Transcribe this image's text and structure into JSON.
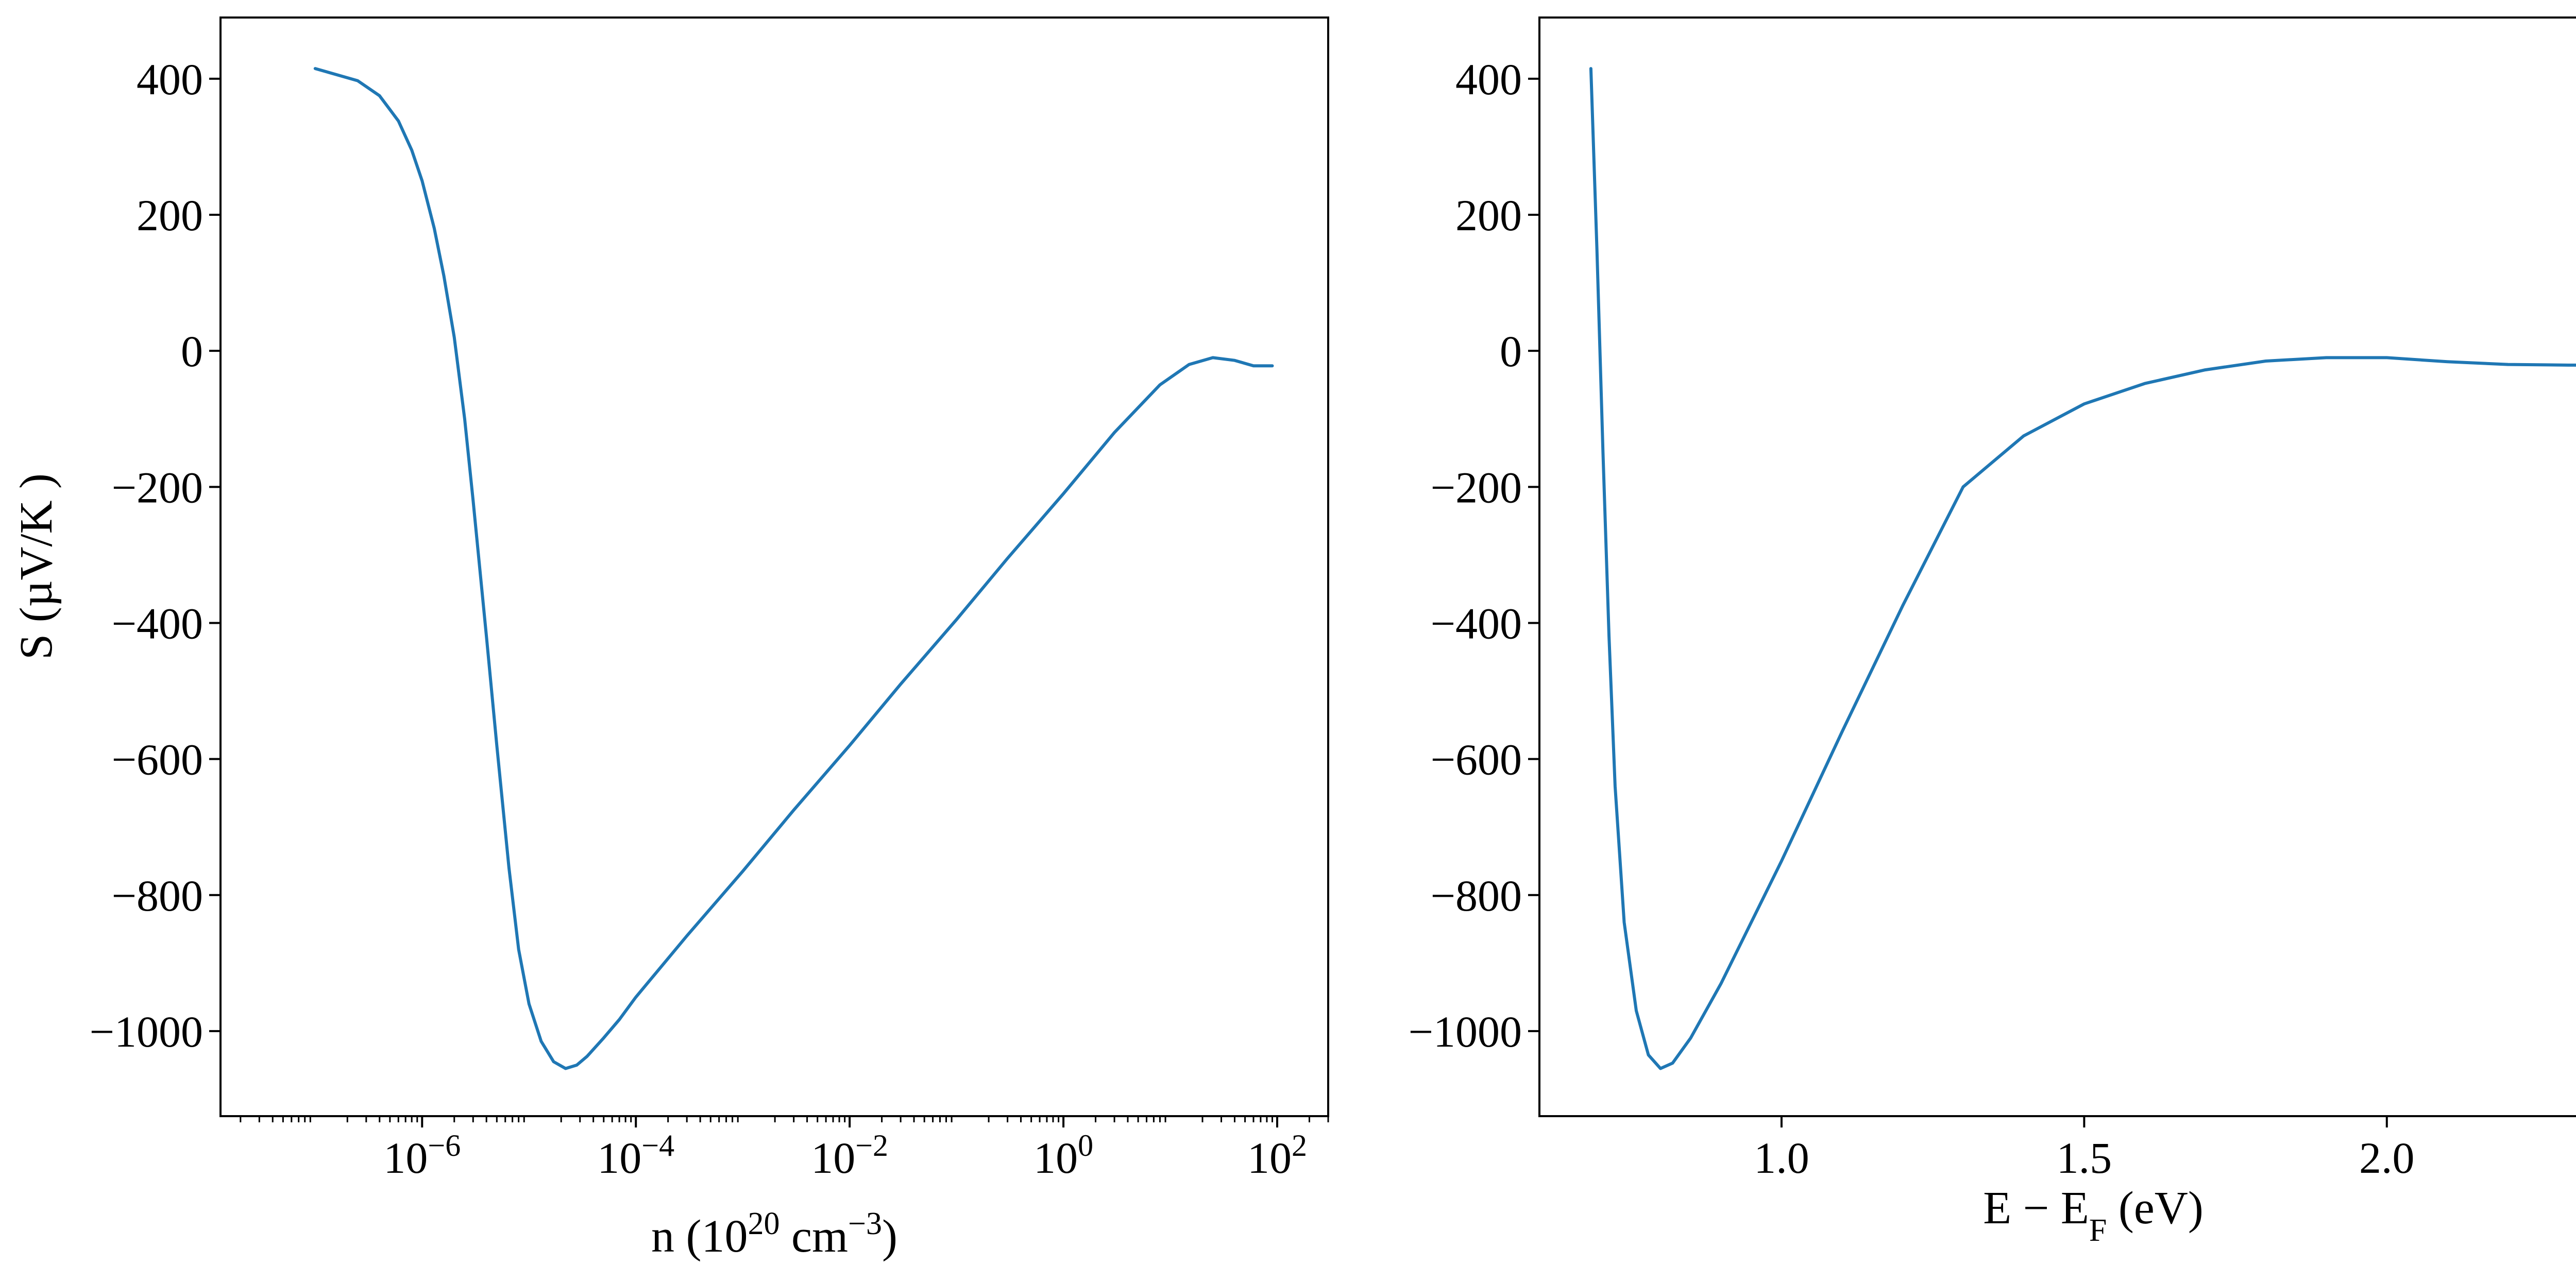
{
  "figure": {
    "ylabel": "S (µV/K )"
  },
  "chart_data": [
    {
      "type": "line",
      "xscale": "log",
      "xlabel": "n (10^20 cm^-3)",
      "xlabel_parts": {
        "pre": "n (10",
        "sup1": "20",
        "mid": " cm",
        "sup2": "−3",
        "post": ")"
      },
      "ylabel": "S (µV/K )",
      "xlim": [
        1.3e-08,
        300
      ],
      "ylim": [
        -1125,
        490
      ],
      "xticks": [
        {
          "value": 1e-06,
          "base": "10",
          "exp": "−6"
        },
        {
          "value": 0.0001,
          "base": "10",
          "exp": "−4"
        },
        {
          "value": 0.01,
          "base": "10",
          "exp": "−2"
        },
        {
          "value": 1,
          "base": "10",
          "exp": "0"
        },
        {
          "value": 100,
          "base": "10",
          "exp": "2"
        }
      ],
      "yticks": [
        {
          "value": 400,
          "label": "400"
        },
        {
          "value": 200,
          "label": "200"
        },
        {
          "value": 0,
          "label": "0"
        },
        {
          "value": -200,
          "label": "−200"
        },
        {
          "value": -400,
          "label": "−400"
        },
        {
          "value": -600,
          "label": "−600"
        },
        {
          "value": -800,
          "label": "−800"
        },
        {
          "value": -1000,
          "label": "−1000"
        }
      ],
      "series": [
        {
          "color": "#1f77b4",
          "points": [
            [
              1e-07,
              415
            ],
            [
              2.5e-07,
              397
            ],
            [
              4e-07,
              375
            ],
            [
              6e-07,
              338
            ],
            [
              8e-07,
              295
            ],
            [
              1e-06,
              250
            ],
            [
              1.3e-06,
              180
            ],
            [
              1.6e-06,
              110
            ],
            [
              2e-06,
              20
            ],
            [
              2.5e-06,
              -100
            ],
            [
              3e-06,
              -220
            ],
            [
              4e-06,
              -420
            ],
            [
              5e-06,
              -580
            ],
            [
              6.5e-06,
              -760
            ],
            [
              8e-06,
              -880
            ],
            [
              1e-05,
              -960
            ],
            [
              1.3e-05,
              -1015
            ],
            [
              1.7e-05,
              -1045
            ],
            [
              2.2e-05,
              -1055
            ],
            [
              2.8e-05,
              -1050
            ],
            [
              3.5e-05,
              -1037
            ],
            [
              5e-05,
              -1010
            ],
            [
              7e-05,
              -983
            ],
            [
              0.0001,
              -950
            ],
            [
              0.0003,
              -860
            ],
            [
              0.001,
              -765
            ],
            [
              0.003,
              -675
            ],
            [
              0.01,
              -580
            ],
            [
              0.03,
              -490
            ],
            [
              0.1,
              -395
            ],
            [
              0.3,
              -305
            ],
            [
              1.0,
              -210
            ],
            [
              3.0,
              -120
            ],
            [
              8.0,
              -50
            ],
            [
              15.0,
              -20
            ],
            [
              25.0,
              -10
            ],
            [
              40.0,
              -14
            ],
            [
              60.0,
              -22
            ],
            [
              90.0,
              -22
            ]
          ]
        }
      ]
    },
    {
      "type": "line",
      "xscale": "linear",
      "xlabel": "E − E_F (eV)",
      "xlabel_parts": {
        "pre": "E − E",
        "sub": "F",
        "post": " (eV)"
      },
      "xlim": [
        0.6,
        2.43
      ],
      "ylim": [
        -1125,
        490
      ],
      "xticks": [
        {
          "value": 1.0,
          "label": "1.0"
        },
        {
          "value": 1.5,
          "label": "1.5"
        },
        {
          "value": 2.0,
          "label": "2.0"
        }
      ],
      "yticks": [
        {
          "value": 400,
          "label": "400"
        },
        {
          "value": 200,
          "label": "200"
        },
        {
          "value": 0,
          "label": "0"
        },
        {
          "value": -200,
          "label": "−200"
        },
        {
          "value": -400,
          "label": "−400"
        },
        {
          "value": -600,
          "label": "−600"
        },
        {
          "value": -800,
          "label": "−800"
        },
        {
          "value": -1000,
          "label": "−1000"
        }
      ],
      "series": [
        {
          "color": "#1f77b4",
          "points": [
            [
              0.685,
              415
            ],
            [
              0.695,
              150
            ],
            [
              0.705,
              -150
            ],
            [
              0.715,
              -420
            ],
            [
              0.725,
              -640
            ],
            [
              0.74,
              -840
            ],
            [
              0.76,
              -970
            ],
            [
              0.78,
              -1035
            ],
            [
              0.8,
              -1055
            ],
            [
              0.82,
              -1047
            ],
            [
              0.85,
              -1010
            ],
            [
              0.9,
              -930
            ],
            [
              0.95,
              -840
            ],
            [
              1.0,
              -750
            ],
            [
              1.05,
              -655
            ],
            [
              1.1,
              -560
            ],
            [
              1.2,
              -375
            ],
            [
              1.3,
              -200
            ],
            [
              1.4,
              -125
            ],
            [
              1.5,
              -78
            ],
            [
              1.6,
              -48
            ],
            [
              1.7,
              -28
            ],
            [
              1.8,
              -15
            ],
            [
              1.9,
              -10
            ],
            [
              2.0,
              -10
            ],
            [
              2.1,
              -16
            ],
            [
              2.2,
              -20
            ],
            [
              2.3,
              -21
            ],
            [
              2.38,
              -21
            ]
          ]
        }
      ]
    }
  ]
}
